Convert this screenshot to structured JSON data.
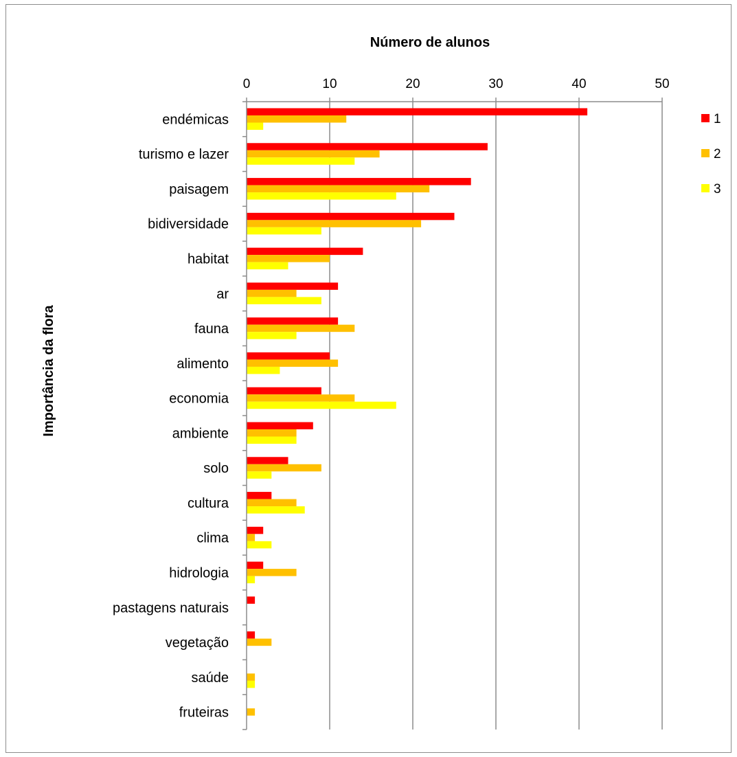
{
  "chart_data": {
    "type": "bar",
    "orientation": "horizontal",
    "title": "Número de alunos",
    "ylabel": "Importância da flora",
    "xlim": [
      0,
      50
    ],
    "x_ticks": [
      "0",
      "10",
      "20",
      "30",
      "40",
      "50"
    ],
    "x_tick_values": [
      0,
      10,
      20,
      30,
      40,
      50
    ],
    "x_axis_position": "top",
    "grid": true,
    "legend_position": "top-right",
    "categories": [
      "endémicas",
      "turismo e lazer",
      "paisagem",
      "bidiversidade",
      "habitat",
      "ar",
      "fauna",
      "alimento",
      "economia",
      "ambiente",
      "solo",
      "cultura",
      "clima",
      "hidrologia",
      "pastagens naturais",
      "vegetação",
      "saúde",
      "fruteiras"
    ],
    "series": [
      {
        "name": "1",
        "color": "#ff0000",
        "values": [
          41,
          29,
          27,
          25,
          14,
          11,
          11,
          10,
          9,
          8,
          5,
          3,
          2,
          2,
          1,
          1,
          0,
          0
        ]
      },
      {
        "name": "2",
        "color": "#ffc000",
        "values": [
          12,
          16,
          22,
          21,
          10,
          6,
          13,
          11,
          13,
          6,
          9,
          6,
          1,
          6,
          0,
          3,
          1,
          1
        ]
      },
      {
        "name": "3",
        "color": "#ffff00",
        "values": [
          2,
          13,
          18,
          9,
          5,
          9,
          6,
          4,
          18,
          6,
          3,
          7,
          3,
          1,
          0,
          0,
          1,
          0
        ]
      }
    ]
  }
}
